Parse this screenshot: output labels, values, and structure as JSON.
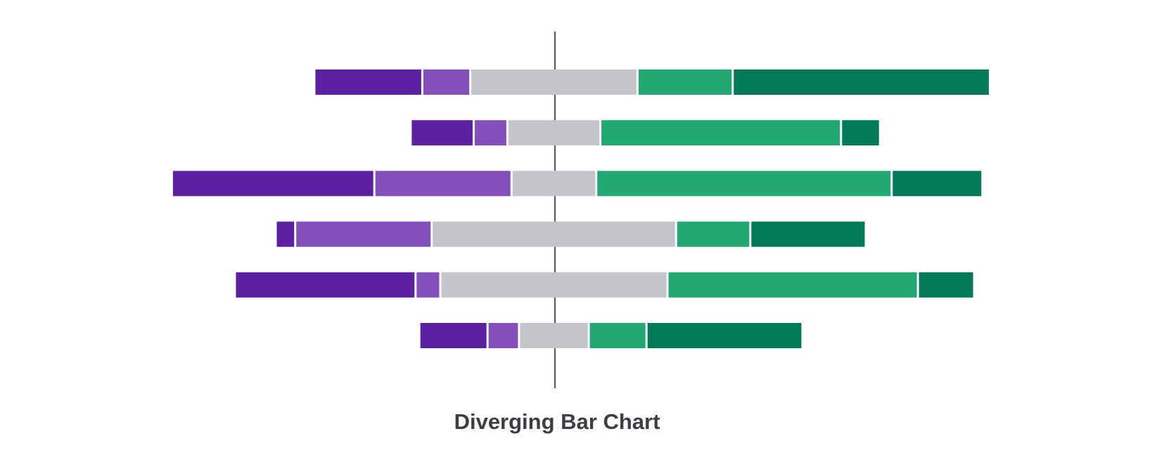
{
  "chart_data": {
    "type": "diverging-bar",
    "title": "Diverging Bar Chart",
    "series": [
      {
        "color": "#5b21a0",
        "values": [
          144,
          84,
          270,
          26,
          241,
          91
        ]
      },
      {
        "color": "#8350bb",
        "values": [
          64,
          45,
          183,
          182,
          33,
          42
        ]
      },
      {
        "color": "#c3c5ca",
        "values": [
          223,
          124,
          113,
          326,
          303,
          93
        ]
      },
      {
        "color": "#22a872",
        "values": [
          127,
          321,
          394,
          99,
          334,
          77
        ]
      },
      {
        "color": "#007a57",
        "values": [
          343,
          52,
          121,
          154,
          75,
          208
        ]
      }
    ]
  }
}
